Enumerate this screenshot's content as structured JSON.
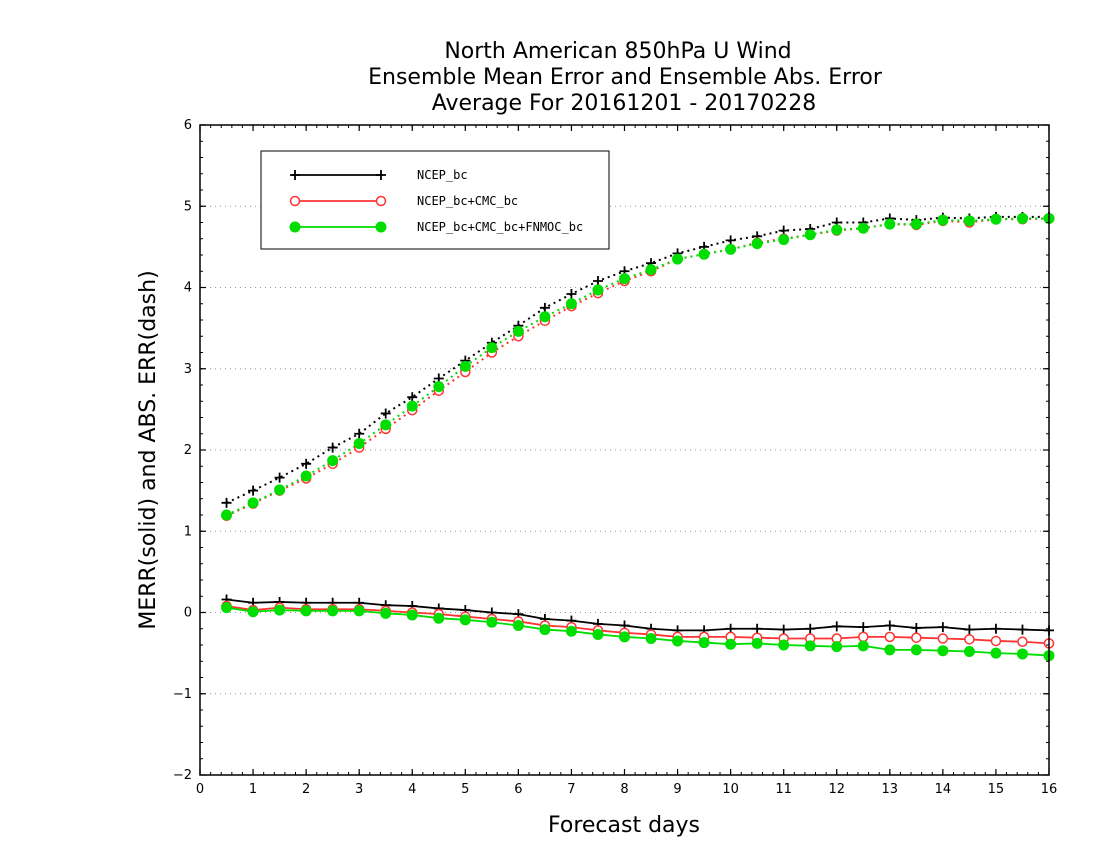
{
  "chart_data": {
    "type": "line",
    "title": [
      "North American 850hPa U Wind",
      "Ensemble Mean Error and Ensemble Abs. Error",
      "Average For 20161201 - 20170228"
    ],
    "xlabel": "Forecast days",
    "ylabel": "MERR(solid) and ABS. ERR(dash)",
    "xlim": [
      0,
      16
    ],
    "ylim": [
      -2,
      6
    ],
    "xticks": [
      "0",
      "1",
      "2",
      "3",
      "4",
      "5",
      "6",
      "7",
      "8",
      "9",
      "10",
      "11",
      "12",
      "13",
      "14",
      "15",
      "16"
    ],
    "yticks": [
      "−2",
      "−1",
      "0",
      "1",
      "2",
      "3",
      "4",
      "5",
      "6"
    ],
    "grid": "horizontal dotted",
    "legend_placement": "top-left",
    "x": [
      0.5,
      1,
      1.5,
      2,
      2.5,
      3,
      3.5,
      4,
      4.5,
      5,
      5.5,
      6,
      6.5,
      7,
      7.5,
      8,
      8.5,
      9,
      9.5,
      10,
      10.5,
      11,
      11.5,
      12,
      12.5,
      13,
      13.5,
      14,
      14.5,
      15,
      15.5,
      16
    ],
    "series": [
      {
        "name": "NCEP_bc",
        "color": "#000000",
        "marker": "plus",
        "merr": [
          0.16,
          0.12,
          0.13,
          0.12,
          0.12,
          0.12,
          0.09,
          0.08,
          0.05,
          0.03,
          0.0,
          -0.02,
          -0.08,
          -0.1,
          -0.14,
          -0.16,
          -0.2,
          -0.22,
          -0.22,
          -0.2,
          -0.2,
          -0.21,
          -0.2,
          -0.17,
          -0.18,
          -0.16,
          -0.19,
          -0.18,
          -0.21,
          -0.2,
          -0.21,
          -0.22
        ],
        "abs_err": [
          1.35,
          1.5,
          1.66,
          1.83,
          2.03,
          2.2,
          2.45,
          2.65,
          2.88,
          3.1,
          3.32,
          3.53,
          3.75,
          3.92,
          4.08,
          4.2,
          4.3,
          4.42,
          4.5,
          4.58,
          4.63,
          4.7,
          4.72,
          4.8,
          4.8,
          4.85,
          4.83,
          4.86,
          4.85,
          4.87,
          4.87,
          4.87
        ]
      },
      {
        "name": "NCEP_bc+CMC_bc",
        "color": "#ff3333",
        "marker": "open-circle",
        "merr": [
          0.08,
          0.03,
          0.06,
          0.04,
          0.04,
          0.04,
          0.02,
          0.0,
          -0.02,
          -0.05,
          -0.08,
          -0.11,
          -0.16,
          -0.18,
          -0.22,
          -0.25,
          -0.27,
          -0.3,
          -0.3,
          -0.3,
          -0.31,
          -0.32,
          -0.32,
          -0.32,
          -0.3,
          -0.3,
          -0.31,
          -0.32,
          -0.33,
          -0.35,
          -0.36,
          -0.38
        ],
        "abs_err": [
          1.19,
          1.34,
          1.5,
          1.65,
          1.83,
          2.03,
          2.26,
          2.49,
          2.73,
          2.96,
          3.2,
          3.4,
          3.59,
          3.77,
          3.93,
          4.08,
          4.2,
          4.35,
          4.41,
          4.47,
          4.55,
          4.6,
          4.65,
          4.7,
          4.73,
          4.78,
          4.77,
          4.82,
          4.8,
          4.84,
          4.84,
          4.85
        ]
      },
      {
        "name": "NCEP_bc+CMC_bc+FNMOC_bc",
        "color": "#00dd00",
        "marker": "filled-circle",
        "merr": [
          0.06,
          0.01,
          0.03,
          0.02,
          0.02,
          0.02,
          -0.01,
          -0.03,
          -0.07,
          -0.09,
          -0.12,
          -0.16,
          -0.21,
          -0.23,
          -0.27,
          -0.3,
          -0.32,
          -0.35,
          -0.37,
          -0.39,
          -0.38,
          -0.4,
          -0.41,
          -0.42,
          -0.41,
          -0.46,
          -0.46,
          -0.47,
          -0.48,
          -0.5,
          -0.51,
          -0.53
        ],
        "abs_err": [
          1.2,
          1.35,
          1.51,
          1.68,
          1.87,
          2.08,
          2.31,
          2.54,
          2.78,
          3.03,
          3.26,
          3.46,
          3.64,
          3.8,
          3.97,
          4.11,
          4.22,
          4.35,
          4.41,
          4.47,
          4.54,
          4.59,
          4.65,
          4.71,
          4.73,
          4.78,
          4.78,
          4.83,
          4.82,
          4.84,
          4.85,
          4.85
        ]
      }
    ]
  }
}
